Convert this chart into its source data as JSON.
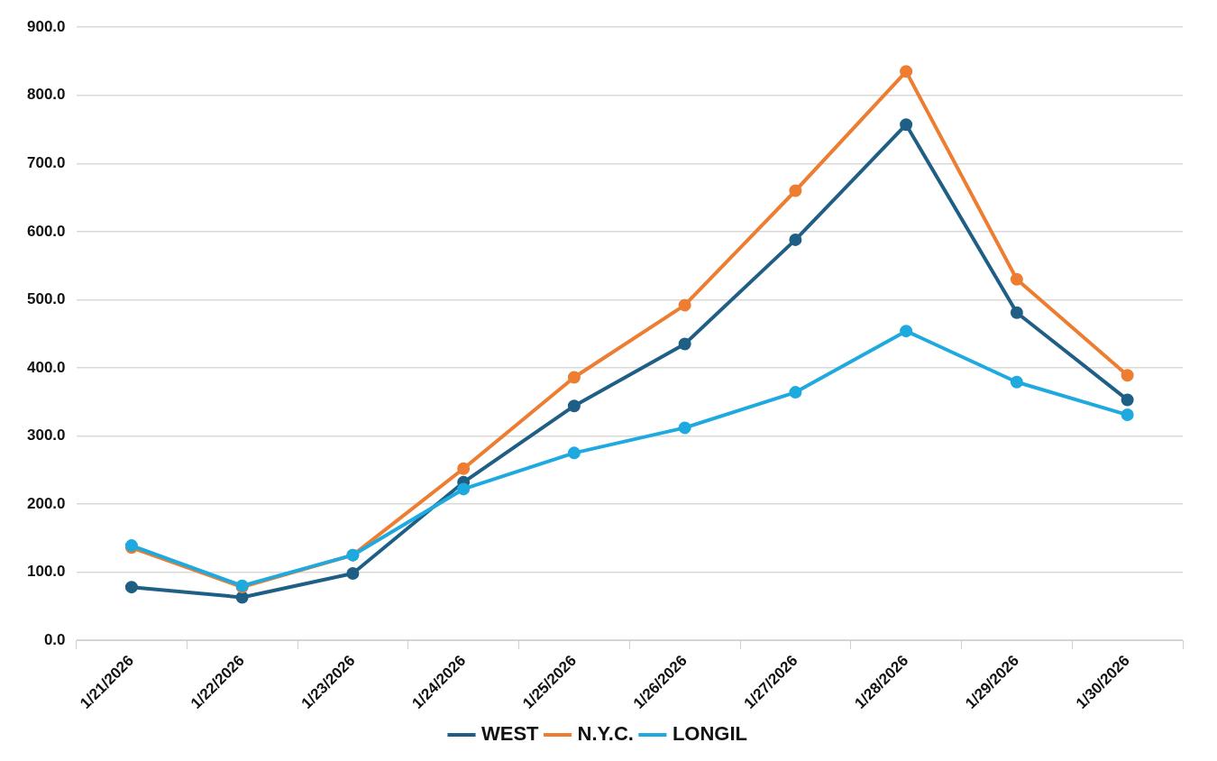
{
  "chart_data": {
    "type": "line",
    "categories": [
      "1/21/2026",
      "1/22/2026",
      "1/23/2026",
      "1/24/2026",
      "1/25/2026",
      "1/26/2026",
      "1/27/2026",
      "1/28/2026",
      "1/29/2026",
      "1/30/2026"
    ],
    "series": [
      {
        "name": "WEST",
        "color": "#1f5f85",
        "values": [
          78,
          63,
          98,
          232,
          344,
          435,
          588,
          757,
          481,
          353
        ]
      },
      {
        "name": "N.Y.C.",
        "color": "#ed7d31",
        "values": [
          136,
          78,
          125,
          252,
          386,
          492,
          660,
          835,
          530,
          389
        ]
      },
      {
        "name": "LONGIL",
        "color": "#1eaadf",
        "values": [
          139,
          80,
          125,
          222,
          275,
          312,
          364,
          454,
          379,
          331
        ]
      }
    ],
    "ylim": [
      0,
      900
    ],
    "yticks": [
      {
        "value": 0,
        "label": "0.0"
      },
      {
        "value": 100,
        "label": "100.0"
      },
      {
        "value": 200,
        "label": "200.0"
      },
      {
        "value": 300,
        "label": "300.0"
      },
      {
        "value": 400,
        "label": "400.0"
      },
      {
        "value": 500,
        "label": "500.0"
      },
      {
        "value": 600,
        "label": "600.0"
      },
      {
        "value": 700,
        "label": "700.0"
      },
      {
        "value": 800,
        "label": "800.0"
      },
      {
        "value": 900,
        "label": "900.0"
      }
    ],
    "grid": "y",
    "legend": "bottom",
    "marker": "circle",
    "line_style": "solid"
  }
}
